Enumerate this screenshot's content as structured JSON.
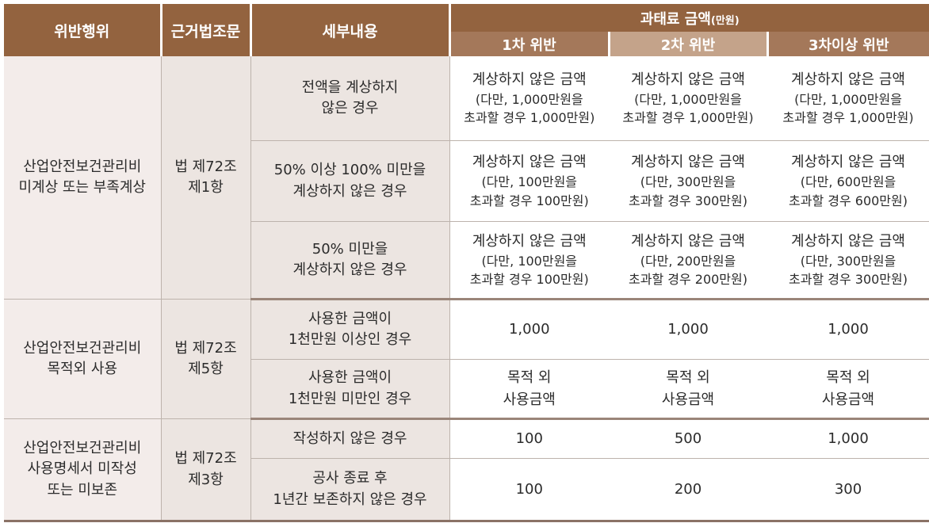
{
  "header": {
    "violation": "위반행위",
    "law": "근거법조문",
    "detail": "세부내용",
    "fine": "과태료 금액",
    "fine_unit": "(만원)",
    "first": "1차 위반",
    "second": "2차 위반",
    "third": "3차이상 위반"
  },
  "groups": [
    {
      "violation": "산업안전보건관리비\n미계상 또는 부족계상",
      "law": "법 제72조\n제1항",
      "rows": [
        {
          "detail": "전액을 계상하지\n않은 경우",
          "first_main": "계상하지 않은 금액",
          "first_note": "(다만, 1,000만원을\n초과할 경우 1,000만원)",
          "second_main": "계상하지 않은 금액",
          "second_note": "(다만, 1,000만원을\n초과할 경우 1,000만원)",
          "third_main": "계상하지 않은 금액",
          "third_note": "(다만, 1,000만원을\n초과할 경우 1,000만원)"
        },
        {
          "detail": "50% 이상 100% 미만을\n계상하지 않은 경우",
          "first_main": "계상하지 않은 금액",
          "first_note": "(다만, 100만원을\n초과할 경우 100만원)",
          "second_main": "계상하지 않은 금액",
          "second_note": "(다만, 300만원을\n초과할 경우 300만원)",
          "third_main": "계상하지 않은 금액",
          "third_note": "(다만, 600만원을\n초과할 경우 600만원)"
        },
        {
          "detail": "50% 미만을\n계상하지 않은 경우",
          "first_main": "계상하지 않은 금액",
          "first_note": "(다만, 100만원을\n초과할 경우 100만원)",
          "second_main": "계상하지 않은 금액",
          "second_note": "(다만, 200만원을\n초과할 경우 200만원)",
          "third_main": "계상하지 않은 금액",
          "third_note": "(다만, 300만원을\n초과할 경우 300만원)"
        }
      ]
    },
    {
      "violation": "산업안전보건관리비\n목적외 사용",
      "law": "법 제72조\n제5항",
      "rows": [
        {
          "detail": "사용한 금액이\n1천만원 이상인 경우",
          "first": "1,000",
          "second": "1,000",
          "third": "1,000"
        },
        {
          "detail": "사용한 금액이\n1천만원 미만인 경우",
          "first": "목적 외\n사용금액",
          "second": "목적 외\n사용금액",
          "third": "목적 외\n사용금액"
        }
      ]
    },
    {
      "violation": "산업안전보건관리비\n사용명세서 미작성\n또는 미보존",
      "law": "법 제72조\n제3항",
      "rows": [
        {
          "detail": "작성하지 않은 경우",
          "first": "100",
          "second": "500",
          "third": "1,000"
        },
        {
          "detail": "공사 종료 후\n1년간 보존하지 않은 경우",
          "first": "100",
          "second": "200",
          "third": "300"
        }
      ]
    }
  ]
}
